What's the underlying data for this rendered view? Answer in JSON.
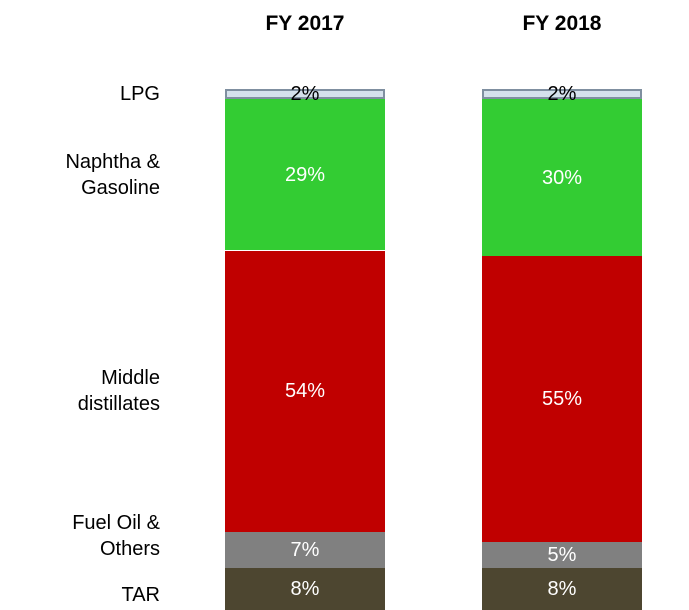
{
  "chart_data": {
    "type": "stacked_bar",
    "categories": [
      "FY 2017",
      "FY 2018"
    ],
    "series": [
      {
        "name": "LPG",
        "color": "#d5e1ec",
        "values": [
          2,
          2
        ],
        "value_labels": [
          "2%",
          "2%"
        ]
      },
      {
        "name": "Naphtha &\nGasoline",
        "color": "#33cc33",
        "values": [
          29,
          30
        ],
        "value_labels": [
          "29%",
          "30%"
        ]
      },
      {
        "name": "Middle\ndistillates",
        "color": "#c00000",
        "values": [
          54,
          55
        ],
        "value_labels": [
          "54%",
          "55%"
        ]
      },
      {
        "name": "Fuel Oil &\nOthers",
        "color": "#808080",
        "values": [
          7,
          5
        ],
        "value_labels": [
          "7%",
          "5%"
        ]
      },
      {
        "name": "TAR",
        "color": "#4d4630",
        "values": [
          8,
          8
        ],
        "value_labels": [
          "8%",
          "8%"
        ]
      }
    ],
    "ylim": [
      0,
      100
    ]
  }
}
